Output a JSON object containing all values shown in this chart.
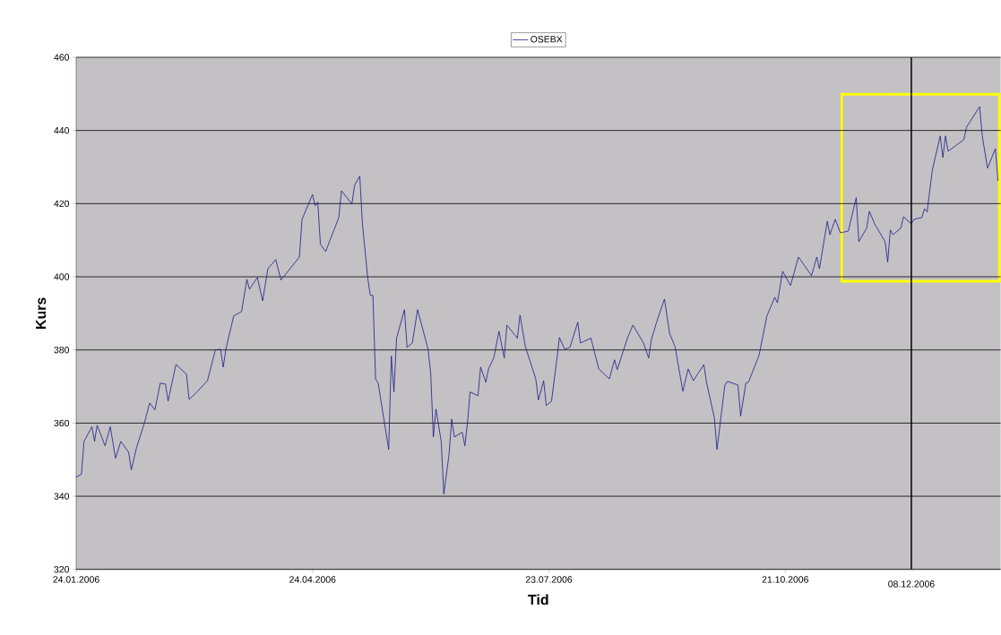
{
  "chart_data": {
    "type": "line",
    "xlabel": "Tid",
    "ylabel": "Kurs",
    "x": [
      "2006-01-24",
      "2006-01-26",
      "2006-01-27",
      "2006-01-30",
      "2006-01-31",
      "2006-02-01",
      "2006-02-04",
      "2006-02-06",
      "2006-02-08",
      "2006-02-10",
      "2006-02-13",
      "2006-02-14",
      "2006-02-16",
      "2006-02-19",
      "2006-02-21",
      "2006-02-23",
      "2006-02-25",
      "2006-02-27",
      "2006-02-28",
      "2006-03-03",
      "2006-03-07",
      "2006-03-08",
      "2006-03-11",
      "2006-03-15",
      "2006-03-18",
      "2006-03-20",
      "2006-03-21",
      "2006-03-22",
      "2006-03-25",
      "2006-03-28",
      "2006-03-30",
      "2006-03-31",
      "2006-04-03",
      "2006-04-05",
      "2006-04-07",
      "2006-04-10",
      "2006-04-12",
      "2006-04-19",
      "2006-04-20",
      "2006-04-24",
      "2006-04-25",
      "2006-04-26",
      "2006-04-27",
      "2006-04-29",
      "2006-05-04",
      "2006-05-05",
      "2006-05-09",
      "2006-05-10",
      "2006-05-12",
      "2006-05-13",
      "2006-05-15",
      "2006-05-16",
      "2006-05-17",
      "2006-05-18",
      "2006-05-19",
      "2006-05-23",
      "2006-05-24",
      "2006-05-25",
      "2006-05-26",
      "2006-05-29",
      "2006-05-30",
      "2006-06-01",
      "2006-06-03",
      "2006-06-07",
      "2006-06-08",
      "2006-06-09",
      "2006-06-10",
      "2006-06-12",
      "2006-06-13",
      "2006-06-15",
      "2006-06-16",
      "2006-06-17",
      "2006-06-20",
      "2006-06-21",
      "2006-06-22",
      "2006-06-23",
      "2006-06-26",
      "2006-06-27",
      "2006-06-29",
      "2006-06-30",
      "2006-07-02",
      "2006-07-04",
      "2006-07-06",
      "2006-07-07",
      "2006-07-11",
      "2006-07-12",
      "2006-07-14",
      "2006-07-18",
      "2006-07-19",
      "2006-07-21",
      "2006-07-22",
      "2006-07-24",
      "2006-07-26",
      "2006-07-27",
      "2006-07-29",
      "2006-07-31",
      "2006-08-03",
      "2006-08-04",
      "2006-08-08",
      "2006-08-11",
      "2006-08-15",
      "2006-08-17",
      "2006-08-18",
      "2006-08-22",
      "2006-08-24",
      "2006-08-28",
      "2006-08-30",
      "2006-08-31",
      "2006-09-02",
      "2006-09-05",
      "2006-09-07",
      "2006-09-09",
      "2006-09-12",
      "2006-09-14",
      "2006-09-16",
      "2006-09-20",
      "2006-09-21",
      "2006-09-24",
      "2006-09-25",
      "2006-09-28",
      "2006-09-29",
      "2006-10-03",
      "2006-10-04",
      "2006-10-06",
      "2006-10-07",
      "2006-10-11",
      "2006-10-14",
      "2006-10-17",
      "2006-10-18",
      "2006-10-20",
      "2006-10-23",
      "2006-10-26",
      "2006-10-31",
      "2006-11-02",
      "2006-11-03",
      "2006-11-06",
      "2006-11-07",
      "2006-11-09",
      "2006-11-11",
      "2006-11-14",
      "2006-11-17",
      "2006-11-18",
      "2006-11-21",
      "2006-11-22",
      "2006-11-24",
      "2006-11-28",
      "2006-11-29",
      "2006-11-30",
      "2006-12-01",
      "2006-12-04",
      "2006-12-05",
      "2006-12-08",
      "2006-12-09",
      "2006-12-12",
      "2006-12-13",
      "2006-12-14",
      "2006-12-16",
      "2006-12-19",
      "2006-12-20",
      "2006-12-21",
      "2006-12-22",
      "2006-12-28",
      "2006-12-29",
      "2007-01-03",
      "2007-01-04",
      "2007-01-06",
      "2007-01-09",
      "2007-01-10"
    ],
    "series": [
      {
        "name": "OSEBX",
        "color": "#1a1a8c",
        "values": [
          345.2,
          346,
          355,
          359,
          355,
          359.4,
          353.8,
          359,
          350.4,
          355,
          352,
          347.2,
          353.3,
          360.1,
          365.5,
          363.6,
          370.9,
          370.7,
          366,
          376,
          373.4,
          366.5,
          368.5,
          371.6,
          380,
          380.2,
          375.3,
          380.2,
          389.3,
          390.5,
          399.3,
          396.6,
          399.8,
          393.4,
          402.2,
          404.7,
          399.1,
          405.4,
          415.7,
          422.5,
          419.4,
          420.4,
          408.9,
          406.9,
          416.2,
          423.5,
          419.9,
          425,
          427.5,
          414.5,
          399.8,
          394.9,
          394.9,
          372.1,
          370.9,
          352.8,
          378.3,
          368.5,
          383.2,
          391,
          380.7,
          381.9,
          391,
          380.2,
          373.6,
          356.2,
          363.8,
          355,
          340.6,
          351.6,
          361.1,
          356.2,
          357.5,
          353.8,
          360.1,
          368.5,
          367.5,
          375.3,
          371.2,
          374.8,
          377.8,
          385.1,
          377.8,
          386.8,
          383.2,
          389.5,
          381,
          372.1,
          366.3,
          371.6,
          364.8,
          366,
          377.3,
          383.4,
          380.2,
          380.7,
          387.6,
          381.9,
          383.2,
          374.8,
          372.1,
          377.3,
          374.6,
          383.4,
          386.8,
          381.9,
          377.8,
          382.7,
          387.6,
          393.9,
          384.4,
          381,
          368.7,
          374.8,
          371.6,
          376,
          371.2,
          361.4,
          352.8,
          370.4,
          371.4,
          370.4,
          361.9,
          370.9,
          371.2,
          378.5,
          389.3,
          394.4,
          392.9,
          401.5,
          397.6,
          405.4,
          400.3,
          405.4,
          402.2,
          415.2,
          411.5,
          415.7,
          412,
          412.5,
          421.6,
          409.6,
          413.3,
          417.9,
          414.5,
          409.6,
          404,
          412.8,
          411.5,
          413.3,
          416.4,
          414.5,
          415.7,
          416.2,
          418.6,
          417.7,
          429.2,
          438.5,
          432.6,
          438.5,
          434.3,
          437.5,
          440.9,
          446.5,
          438.5,
          429.7,
          435,
          426.2
        ]
      }
    ],
    "xlim": [
      "2006-01-24",
      "2007-01-11"
    ],
    "xticks": [
      {
        "value": "2006-01-24",
        "label": "24.01.2006"
      },
      {
        "value": "2006-04-24",
        "label": "24.04.2006"
      },
      {
        "value": "2006-07-23",
        "label": "23.07.2006"
      },
      {
        "value": "2006-10-21",
        "label": "21.10.2006"
      }
    ],
    "ylim": [
      320,
      460
    ],
    "yticks": [
      320,
      340,
      360,
      380,
      400,
      420,
      440,
      460
    ],
    "ref_lines": [
      {
        "axis": "x",
        "value": "2006-12-08",
        "label": "08.12.2006",
        "color": "#000000"
      }
    ],
    "grid": "y",
    "legend": "top",
    "marker": "none"
  }
}
